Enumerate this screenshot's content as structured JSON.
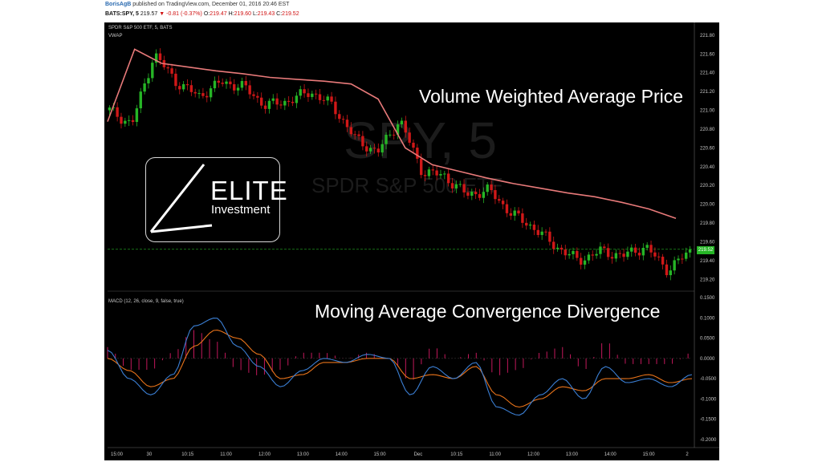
{
  "header": {
    "author": "BorisAgB",
    "published": "published on TradingView.com, December 01, 2016 20:46 EST",
    "symbol": "BATS:SPY, 5",
    "last": "219.57",
    "down_arrow": "▼",
    "change": "-0.81 (-0.37%)",
    "ohlc_prefix_o": "O:",
    "ohlc_o": "219.47",
    "ohlc_prefix_h": "H:",
    "ohlc_h": "219.60",
    "ohlc_prefix_l": "L:",
    "ohlc_l": "219.43",
    "ohlc_prefix_c": "C:",
    "ohlc_c": "219.52"
  },
  "price_panel": {
    "title": "SPDR S&P 500 ETF, 5, BATS",
    "indicator": "VWAP",
    "annotation": "Volume Weighted Average Price",
    "watermark_symbol": "SPY, 5",
    "watermark_name": "SPDR S&P 500 ETF",
    "current_price_tag": "219.52"
  },
  "macd_panel": {
    "title": "MACD (12, 26, close, 9, false, true)",
    "annotation": "Moving Average Convergence Divergence"
  },
  "logo": {
    "word": "ELITE",
    "subword": "Investment"
  },
  "colors": {
    "background": "#000000",
    "up": "#26b526",
    "down": "#d01818",
    "vwap": "#e87a7a",
    "macd": "#3b7fd4",
    "signal": "#e8731a",
    "histogram": "#c2185b",
    "price_line": "#26b526"
  },
  "chart_data": [
    {
      "type": "candlestick",
      "title": "SPDR S&P 500 ETF, 5, BATS",
      "ylim": [
        219.1,
        221.85
      ],
      "y_ticks": [
        "221.80",
        "221.60",
        "221.40",
        "221.20",
        "221.00",
        "220.80",
        "220.60",
        "220.40",
        "220.20",
        "220.00",
        "219.80",
        "219.60",
        "219.40",
        "219.20"
      ],
      "x_ticks": [
        "15:00",
        "30",
        "10:15",
        "11:00",
        "12:00",
        "13:00",
        "14:00",
        "15:00",
        "Dec",
        "10:15",
        "11:00",
        "12:00",
        "13:00",
        "14:00",
        "15:00",
        "2"
      ],
      "vwap": [
        220.88,
        221.65,
        221.5,
        221.46,
        221.42,
        221.39,
        221.35,
        221.33,
        221.31,
        221.28,
        221.12,
        220.6,
        220.42,
        220.35,
        220.28,
        220.22,
        220.17,
        220.12,
        220.08,
        220.02,
        219.95,
        219.85
      ],
      "closes": [
        221.0,
        220.85,
        221.6,
        221.3,
        221.15,
        221.3,
        221.25,
        221.05,
        221.1,
        221.2,
        221.05,
        220.7,
        220.55,
        220.9,
        220.35,
        220.3,
        220.1,
        220.15,
        219.9,
        219.75,
        219.55,
        219.4,
        219.5,
        219.45,
        219.55,
        219.3,
        219.5
      ],
      "last_price": 219.52
    },
    {
      "type": "macd",
      "title": "MACD (12, 26, close, 9, false, true)",
      "ylim": [
        -0.22,
        0.16
      ],
      "y_ticks": [
        "0.1500",
        "0.1000",
        "0.0500",
        "0.0000",
        "-0.0500",
        "-0.1000",
        "-0.1500",
        "-0.2000"
      ],
      "series": [
        {
          "values": [
            0.02,
            -0.05,
            -0.09,
            -0.04,
            0.08,
            0.1,
            0.03,
            -0.02,
            -0.07,
            -0.03,
            0.0,
            -0.01,
            0.01,
            0.0,
            -0.09,
            -0.02,
            -0.05,
            -0.01,
            -0.12,
            -0.14,
            -0.09,
            -0.05,
            -0.1,
            -0.02,
            -0.06,
            -0.05,
            -0.07,
            -0.04
          ]
        },
        {
          "values": [
            0.0,
            -0.03,
            -0.07,
            -0.05,
            0.03,
            0.07,
            0.05,
            0.01,
            -0.05,
            -0.04,
            -0.01,
            -0.01,
            0.0,
            0.0,
            -0.05,
            -0.04,
            -0.05,
            -0.02,
            -0.09,
            -0.12,
            -0.1,
            -0.07,
            -0.08,
            -0.05,
            -0.05,
            -0.04,
            -0.06,
            -0.05
          ]
        }
      ]
    }
  ]
}
